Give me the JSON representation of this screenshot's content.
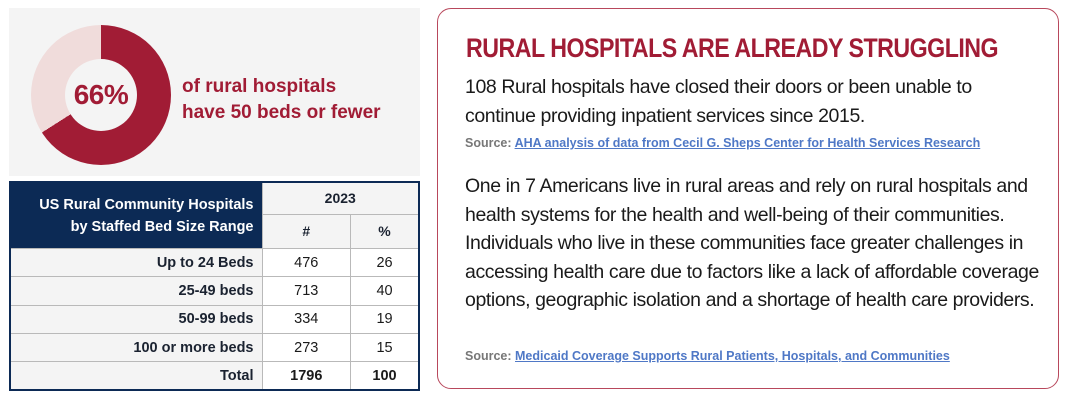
{
  "stat": {
    "percent_label": "66%",
    "percent_value": 66,
    "line1": "of rural hospitals",
    "line2": "have 50 beds or fewer",
    "colors": {
      "primary": "#a11c35",
      "remainder": "#f0dcdb"
    }
  },
  "table": {
    "title_line1": "US Rural Community Hospitals",
    "title_line2": "by Staffed Bed Size Range",
    "year": "2023",
    "col_count": "#",
    "col_pct": "%",
    "rows": [
      {
        "label": "Up to 24 Beds",
        "count": "476",
        "pct": "26"
      },
      {
        "label": "25-49 beds",
        "count": "713",
        "pct": "40"
      },
      {
        "label": "50-99 beds",
        "count": "334",
        "pct": "19"
      },
      {
        "label": "100 or more beds",
        "count": "273",
        "pct": "15"
      },
      {
        "label": "Total",
        "count": "1796",
        "pct": "100"
      }
    ]
  },
  "card": {
    "title": "RURAL HOSPITALS ARE ALREADY STRUGGLING",
    "paragraph1": "108 Rural hospitals have closed their doors or been unable to continue providing inpatient services since 2015.",
    "source1_prefix": "Source: ",
    "source1_link": "AHA analysis of data from Cecil G. Sheps Center for Health Services Research",
    "paragraph2": "One in 7 Americans live in rural areas and rely on rural hospitals and health systems for the health and well-being of their communities. Individuals who live in these communities face greater challenges in accessing health care due to factors like a lack of affordable coverage options, geographic isolation and a shortage of health care providers.",
    "source2_prefix": "Source: ",
    "source2_link": "Medicaid Coverage Supports Rural Patients, Hospitals, and Communities"
  }
}
